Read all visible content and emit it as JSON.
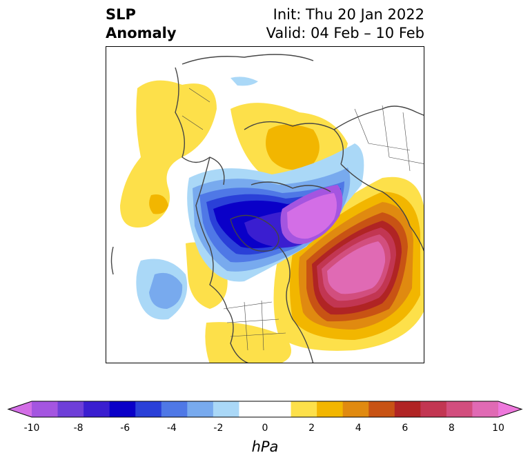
{
  "header": {
    "title_line1": "SLP",
    "title_line2": "Anomaly",
    "init": "Init: Thu 20 Jan 2022",
    "valid": "Valid: 04 Feb – 10 Feb"
  },
  "colorbar": {
    "unit": "hPa",
    "levels": [
      -10,
      -9,
      -8,
      -7,
      -6,
      -5,
      -4,
      -3,
      -2,
      -1,
      1,
      2,
      3,
      4,
      5,
      6,
      7,
      8,
      9,
      10
    ],
    "colors": [
      "#d36ee6",
      "#a455e0",
      "#6e3fd8",
      "#3a1ed0",
      "#0a00c8",
      "#2a40d8",
      "#4f78e6",
      "#78aaee",
      "#aad8f7",
      "#ffffff",
      "#ffffff",
      "#fde04a",
      "#f2b600",
      "#e08a10",
      "#c85314",
      "#b02424",
      "#c23652",
      "#d24e7e",
      "#e06ab4",
      "#ee78dc"
    ],
    "ticks": [
      "-10",
      "-8",
      "-6",
      "-4",
      "-2",
      "0",
      "2",
      "4",
      "6",
      "8",
      "10"
    ]
  }
}
